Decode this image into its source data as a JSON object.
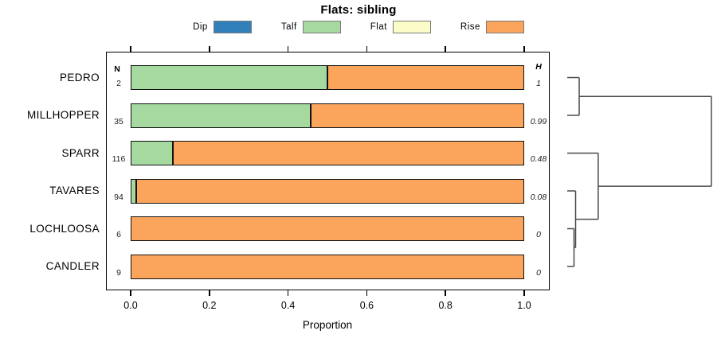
{
  "chart_data": {
    "type": "bar",
    "orientation": "horizontal",
    "stacked": true,
    "title": "Flats: sibling",
    "xlabel": "Proportion",
    "xlim": [
      0,
      1
    ],
    "x_ticks": [
      "0.0",
      "0.2",
      "0.4",
      "0.6",
      "0.8",
      "1.0"
    ],
    "grid": false,
    "legend": {
      "position": "top",
      "entries": [
        {
          "label": "Dip",
          "color": "#3180B9"
        },
        {
          "label": "Talf",
          "color": "#A5D9A0"
        },
        {
          "label": "Flat",
          "color": "#FCFCC9"
        },
        {
          "label": "Rise",
          "color": "#FBA45C"
        }
      ]
    },
    "columns": {
      "n_header": "N",
      "h_header": "H"
    },
    "rows": [
      {
        "label": "PEDRO",
        "n": "2",
        "h": "1",
        "segments": [
          {
            "category": "Talf",
            "value": 0.5
          },
          {
            "category": "Rise",
            "value": 0.5
          }
        ]
      },
      {
        "label": "MILLHOPPER",
        "n": "35",
        "h": "0.99",
        "segments": [
          {
            "category": "Talf",
            "value": 0.457
          },
          {
            "category": "Rise",
            "value": 0.543
          }
        ]
      },
      {
        "label": "SPARR",
        "n": "116",
        "h": "0.48",
        "segments": [
          {
            "category": "Talf",
            "value": 0.107
          },
          {
            "category": "Rise",
            "value": 0.893
          }
        ]
      },
      {
        "label": "TAVARES",
        "n": "94",
        "h": "0.08",
        "segments": [
          {
            "category": "Talf",
            "value": 0.015
          },
          {
            "category": "Rise",
            "value": 0.985
          }
        ]
      },
      {
        "label": "LOCHLOOSA",
        "n": "6",
        "h": "0",
        "segments": [
          {
            "category": "Rise",
            "value": 1
          }
        ]
      },
      {
        "label": "CANDLER",
        "n": "9",
        "h": "0",
        "segments": [
          {
            "category": "Rise",
            "value": 1
          }
        ]
      }
    ],
    "dendrogram": {
      "side": "right",
      "tree": {
        "h": 1.0,
        "children": [
          {
            "h": 0.083,
            "children": [
              {
                "leaf": "PEDRO"
              },
              {
                "leaf": "MILLHOPPER"
              }
            ]
          },
          {
            "h": 0.215,
            "children": [
              {
                "leaf": "SPARR"
              },
              {
                "h": 0.058,
                "children": [
                  {
                    "leaf": "TAVARES"
                  },
                  {
                    "h": 0.047,
                    "children": [
                      {
                        "leaf": "LOCHLOOSA"
                      },
                      {
                        "leaf": "CANDLER"
                      }
                    ]
                  }
                ]
              }
            ]
          }
        ]
      }
    }
  }
}
